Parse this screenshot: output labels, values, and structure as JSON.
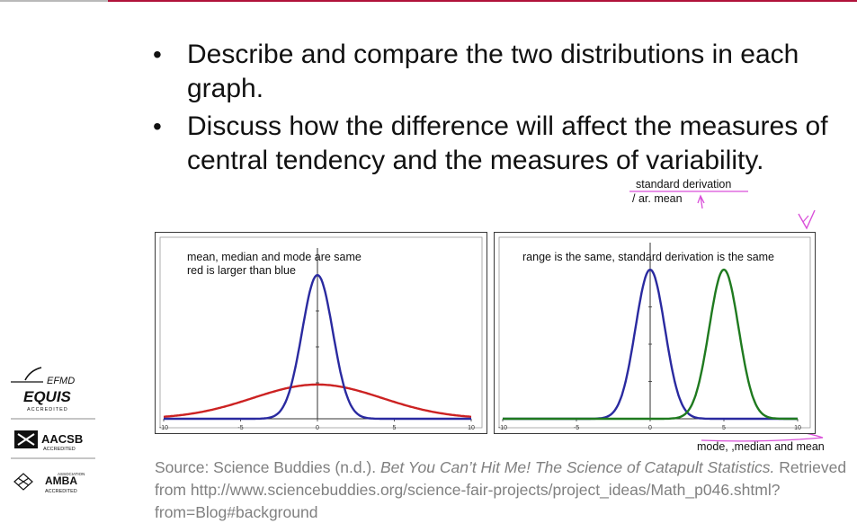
{
  "slide": {
    "bullets": [
      "Describe and compare the two distributions in each graph.",
      "Discuss how the difference will affect the measures of central tendency and the measures of variability."
    ],
    "handwriting": {
      "above": "standard derivation",
      "below": "/ ar. mean",
      "mode_note": "mode, ,median and mean"
    },
    "source": {
      "prefix": "Source: Science Buddies (n.d.).",
      "title": "Bet You Can’t Hit Me! The Science of Catapult Statistics.",
      "suffix": "Retrieved from http://www.sciencebuddies.org/science-fair-projects/project_ideas/Math_p046.shtml?from=Blog#background"
    },
    "logos": {
      "efmd": "EFMD",
      "equis": "EQUIS",
      "equis_sub": "ACCREDITED",
      "aacsb": "AACSB",
      "aacsb_sub": "ACCREDITED",
      "amba_assoc": "ASSOCIATION",
      "amba": "AMBA",
      "amba_sub": "ACCREDITED"
    }
  },
  "chart_data": [
    {
      "type": "line",
      "annotation_lines": [
        "mean, median and mode are same",
        "red is larger than blue"
      ],
      "xlim": [
        -10,
        10
      ],
      "xticks": [
        "-10",
        "-5",
        "0",
        "5",
        "10"
      ],
      "series": [
        {
          "color": "#cc2222",
          "mean": 0,
          "sd": 4.2
        },
        {
          "color": "#2a2aa0",
          "mean": 0,
          "sd": 1.0
        }
      ]
    },
    {
      "type": "line",
      "annotation_lines": [
        "range is the same, standard derivation is the same"
      ],
      "xlim": [
        -10,
        10
      ],
      "xticks": [
        "-10",
        "-5",
        "0",
        "5",
        "10"
      ],
      "series": [
        {
          "color": "#2a2aa0",
          "mean": 0,
          "sd": 1.0
        },
        {
          "color": "#1f7a1f",
          "mean": 5,
          "sd": 1.0
        }
      ]
    }
  ]
}
